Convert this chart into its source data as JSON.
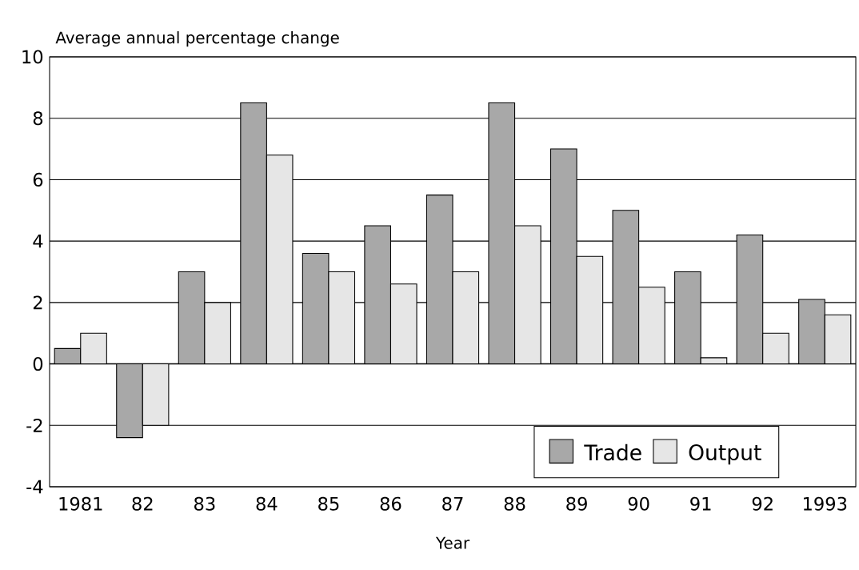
{
  "chart_data": {
    "type": "bar",
    "xlabel": "Year",
    "ylabel": "Average annual percentage change",
    "categories": [
      "1981",
      "82",
      "83",
      "84",
      "85",
      "86",
      "87",
      "88",
      "89",
      "90",
      "91",
      "92",
      "1993"
    ],
    "series": [
      {
        "name": "Trade",
        "color": "#a8a8a8",
        "values": [
          0.5,
          -2.4,
          3.0,
          8.5,
          3.6,
          4.5,
          5.5,
          8.5,
          7.0,
          5.0,
          3.0,
          4.2,
          2.1
        ]
      },
      {
        "name": "Output",
        "color": "#e6e6e6",
        "values": [
          1.0,
          -2.0,
          2.0,
          6.8,
          3.0,
          2.6,
          3.0,
          4.5,
          3.5,
          2.5,
          0.2,
          1.0,
          1.6
        ]
      }
    ],
    "ylim": [
      -4,
      10
    ],
    "yticks": [
      -4,
      -2,
      0,
      2,
      4,
      6,
      8,
      10
    ],
    "grid": "y",
    "legend": "bottom right"
  }
}
